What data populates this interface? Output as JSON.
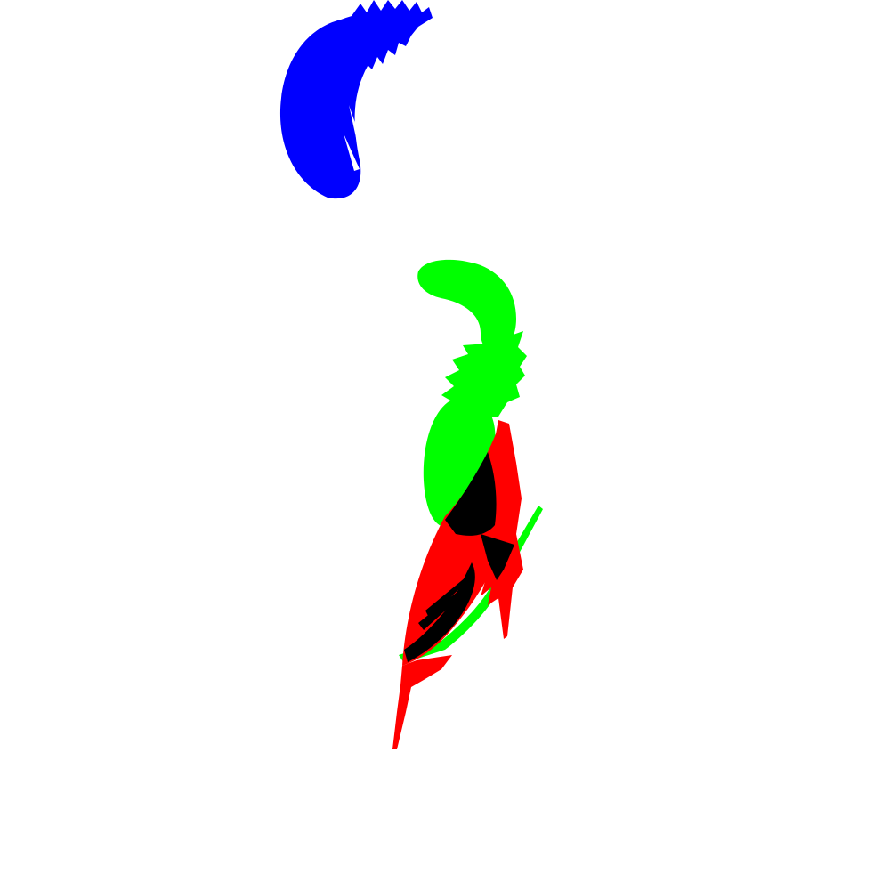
{
  "canvas": {
    "background": "#ffffff"
  },
  "shapes": [
    {
      "name": "blue-feather",
      "depicts": "feather",
      "color": "#0000ff"
    },
    {
      "name": "green-feather",
      "depicts": "feather",
      "color": "#00ff00"
    },
    {
      "name": "red-feather",
      "depicts": "feather",
      "color": "#ff0000"
    },
    {
      "name": "overlap-region",
      "depicts": "overlap",
      "color": "#000000"
    }
  ]
}
